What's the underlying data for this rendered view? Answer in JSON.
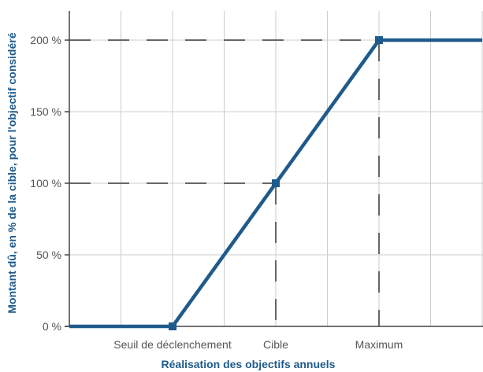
{
  "chart_data": {
    "type": "line",
    "xlabel": "Réalisation des objectifs annuels",
    "ylabel": "Montant dû, en % de la cible, pour l'objectif considéré",
    "ylim": [
      0,
      215
    ],
    "y_ticks": [
      {
        "value": 0,
        "label": "0 %"
      },
      {
        "value": 50,
        "label": "50 %"
      },
      {
        "value": 100,
        "label": "100 %"
      },
      {
        "value": 150,
        "label": "150 %"
      },
      {
        "value": 200,
        "label": "200 %"
      }
    ],
    "x_ticks": [
      {
        "label": "Seuil de déclenchement",
        "index": 2
      },
      {
        "label": "Cible",
        "index": 4
      },
      {
        "label": "Maximum",
        "index": 6
      }
    ],
    "series": [
      {
        "points": [
          {
            "x": 0,
            "y": 0
          },
          {
            "x": 2,
            "y": 0
          },
          {
            "x": 4,
            "y": 100
          },
          {
            "x": 6,
            "y": 200
          },
          {
            "x": 8,
            "y": 200
          }
        ]
      }
    ],
    "markers": [
      2,
      4,
      6
    ],
    "reference_lines": [
      {
        "y": 100,
        "to_x": 4
      },
      {
        "y": 200,
        "to_x": 6
      }
    ],
    "grid": true,
    "colors": {
      "line": "#1f5a8c",
      "grid": "#cccccc",
      "dash": "#666666",
      "axis": "#444444"
    }
  }
}
